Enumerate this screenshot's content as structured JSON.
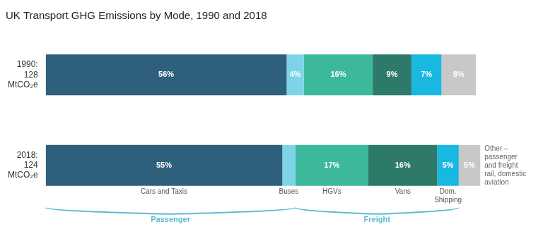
{
  "chart_data": {
    "type": "bar",
    "title": "UK Transport GHG Emissions by Mode, 1990 and 2018",
    "orientation": "horizontal",
    "stacked": true,
    "categories": [
      "1990:\n128\nMtCO₂e",
      "2018:\n124\nMtCO₂e"
    ],
    "series": [
      {
        "name": "Cars and Taxis",
        "color": "#2e5f7c",
        "values": [
          56,
          55
        ],
        "value_labels": [
          "56%",
          "55%"
        ]
      },
      {
        "name": "Buses",
        "color": "#7dd4e8",
        "values": [
          4,
          3
        ],
        "value_labels": [
          "4%",
          null
        ]
      },
      {
        "name": "HGVs",
        "color": "#3cb89c",
        "values": [
          16,
          17
        ],
        "value_labels": [
          "16%",
          "17%"
        ]
      },
      {
        "name": "Vans",
        "color": "#2d7a6a",
        "values": [
          9,
          16
        ],
        "value_labels": [
          "9%",
          "16%"
        ]
      },
      {
        "name": "Dom.\nShipping",
        "color": "#18b8e0",
        "values": [
          7,
          5
        ],
        "value_labels": [
          "7%",
          "5%"
        ]
      },
      {
        "name": "Other –\npassenger\nand freight\nrail, domestic\naviation",
        "color": "#c8c8c8",
        "values": [
          8,
          5
        ],
        "value_labels": [
          "8%",
          "5%"
        ]
      }
    ],
    "annotations": [
      {
        "text": "Passenger",
        "series": [
          "Cars and Taxis",
          "Buses"
        ],
        "color": "#5bbccc"
      },
      {
        "text": "Freight",
        "series": [
          "HGVs",
          "Vans",
          "Dom.\nShipping"
        ],
        "color": "#5bbccc"
      }
    ],
    "data_labels": true,
    "xlim": [
      0,
      110
    ],
    "xticks": [
      0,
      10,
      20,
      30,
      40,
      50,
      60,
      70,
      80,
      90,
      100,
      110
    ],
    "tick_labels": "y",
    "grid": false
  }
}
